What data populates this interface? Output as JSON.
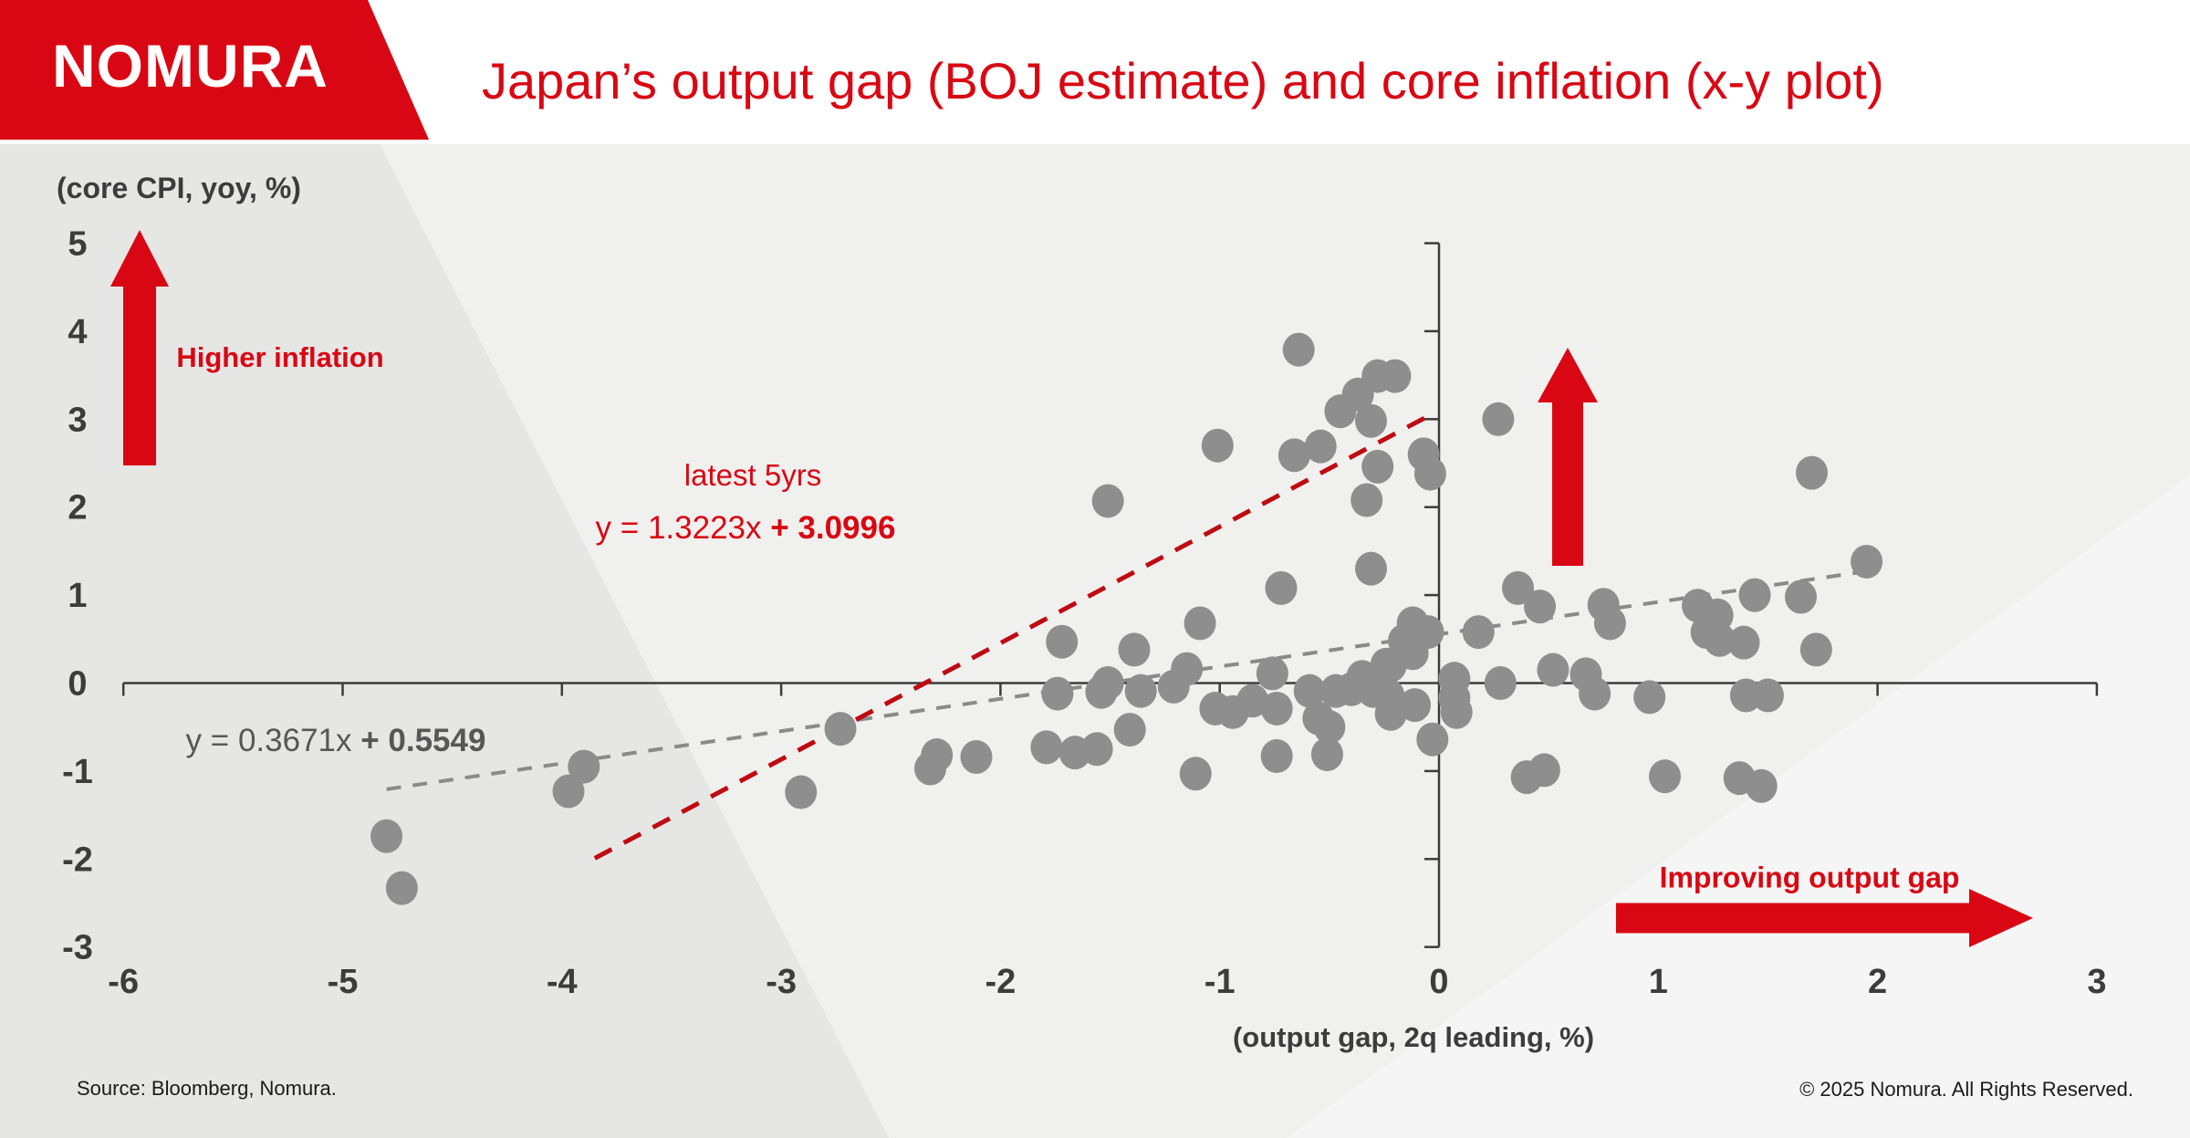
{
  "header": {
    "logo_text": "NOMURA",
    "title": "Japan’s output gap (BOJ estimate) and core inflation (x-y plot)"
  },
  "chart_data": {
    "type": "scatter",
    "title": "Japan’s output gap (BOJ estimate) and core inflation (x-y plot)",
    "xlabel": "(output gap, 2q leading, %)",
    "ylabel": "(core CPI, yoy, %)",
    "xlim": [
      -6,
      3
    ],
    "ylim": [
      -3,
      5
    ],
    "x_ticks": [
      -6,
      -5,
      -4,
      -3,
      -2,
      -1,
      0,
      1,
      2,
      3
    ],
    "y_ticks": [
      -3,
      -2,
      -1,
      0,
      1,
      2,
      3,
      4,
      5
    ],
    "grid": "off",
    "points": [
      [
        -4.8,
        -1.74
      ],
      [
        -4.73,
        -2.33
      ],
      [
        -3.97,
        -1.23
      ],
      [
        -3.9,
        -0.95
      ],
      [
        -2.91,
        -1.24
      ],
      [
        -2.73,
        -0.52
      ],
      [
        -2.32,
        -0.97
      ],
      [
        -2.29,
        -0.82
      ],
      [
        -2.11,
        -0.84
      ],
      [
        -1.79,
        -0.73
      ],
      [
        -1.74,
        -0.12
      ],
      [
        -1.72,
        0.47
      ],
      [
        -1.66,
        -0.79
      ],
      [
        -1.56,
        -0.75
      ],
      [
        -1.54,
        -0.1
      ],
      [
        -1.51,
        2.07
      ],
      [
        -1.51,
        0.0
      ],
      [
        -1.41,
        -0.53
      ],
      [
        -1.39,
        0.38
      ],
      [
        -1.36,
        -0.09
      ],
      [
        -1.21,
        -0.04
      ],
      [
        -1.15,
        0.16
      ],
      [
        -1.11,
        -1.03
      ],
      [
        -1.09,
        0.68
      ],
      [
        -1.02,
        -0.29
      ],
      [
        -1.01,
        2.7
      ],
      [
        -0.94,
        -0.33
      ],
      [
        -0.85,
        -0.2
      ],
      [
        -0.76,
        0.11
      ],
      [
        -0.74,
        -0.29
      ],
      [
        -0.74,
        -0.83
      ],
      [
        -0.72,
        1.08
      ],
      [
        -0.66,
        2.59
      ],
      [
        -0.64,
        3.79
      ],
      [
        -0.59,
        -0.09
      ],
      [
        -0.55,
        -0.4
      ],
      [
        -0.54,
        2.69
      ],
      [
        -0.51,
        -0.81
      ],
      [
        -0.5,
        -0.5
      ],
      [
        -0.47,
        -0.09
      ],
      [
        -0.45,
        3.09
      ],
      [
        -0.4,
        -0.07
      ],
      [
        -0.37,
        3.28
      ],
      [
        -0.35,
        0.07
      ],
      [
        -0.33,
        2.08
      ],
      [
        -0.31,
        2.98
      ],
      [
        -0.31,
        1.3
      ],
      [
        -0.3,
        -0.09
      ],
      [
        -0.28,
        3.49
      ],
      [
        -0.28,
        2.46
      ],
      [
        -0.24,
        0.21
      ],
      [
        -0.23,
        -0.14
      ],
      [
        -0.22,
        0.2
      ],
      [
        -0.22,
        -0.35
      ],
      [
        -0.2,
        3.49
      ],
      [
        -0.16,
        0.48
      ],
      [
        -0.12,
        0.68
      ],
      [
        -0.12,
        0.34
      ],
      [
        -0.11,
        -0.25
      ],
      [
        -0.07,
        2.6
      ],
      [
        -0.05,
        0.58
      ],
      [
        -0.04,
        2.38
      ],
      [
        -0.03,
        -0.64
      ],
      [
        0.07,
        0.05
      ],
      [
        0.07,
        -0.17
      ],
      [
        0.08,
        -0.33
      ],
      [
        0.18,
        0.58
      ],
      [
        0.27,
        3.0
      ],
      [
        0.28,
        0.0
      ],
      [
        0.36,
        1.08
      ],
      [
        0.4,
        -1.07
      ],
      [
        0.46,
        0.87
      ],
      [
        0.48,
        -0.99
      ],
      [
        0.52,
        0.15
      ],
      [
        0.67,
        0.1
      ],
      [
        0.71,
        -0.12
      ],
      [
        0.75,
        0.89
      ],
      [
        0.78,
        0.68
      ],
      [
        0.96,
        -0.16
      ],
      [
        1.03,
        -1.06
      ],
      [
        1.18,
        0.88
      ],
      [
        1.22,
        0.58
      ],
      [
        1.27,
        0.77
      ],
      [
        1.28,
        0.49
      ],
      [
        1.37,
        -1.08
      ],
      [
        1.39,
        0.46
      ],
      [
        1.4,
        -0.14
      ],
      [
        1.44,
        1.0
      ],
      [
        1.47,
        -1.17
      ],
      [
        1.5,
        -0.14
      ],
      [
        1.65,
        0.98
      ],
      [
        1.7,
        2.39
      ],
      [
        1.72,
        0.38
      ],
      [
        1.95,
        1.38
      ]
    ],
    "trendlines": [
      {
        "name": "full-sample",
        "equation_prefix": "y = 0.3671x ",
        "equation_bold": "+ 0.5549",
        "slope": 0.3671,
        "intercept": 0.5549,
        "x_start": -4.8,
        "x_end": 1.95,
        "color": "#8a8a8a"
      },
      {
        "name": "latest-5yrs",
        "label": "latest 5yrs",
        "equation_prefix": "y = 1.3223x ",
        "equation_bold": "+ 3.0996",
        "slope": 1.3223,
        "intercept": 3.0996,
        "x_start": -3.85,
        "x_end": -0.02,
        "color": "#be0b12"
      }
    ],
    "annotations": {
      "up_label": "Higher inflation",
      "right_label": "Improving output gap"
    }
  },
  "footer": {
    "source": "Source: Bloomberg, Nomura.",
    "copyright": "© 2025 Nomura. All Rights Reserved."
  },
  "colors": {
    "brand_red": "#d90713",
    "trend_red": "#be0b12",
    "trend_gray": "#8a8a8a",
    "dot_gray": "#8e8e8e",
    "axis": "#3c3c3c"
  }
}
